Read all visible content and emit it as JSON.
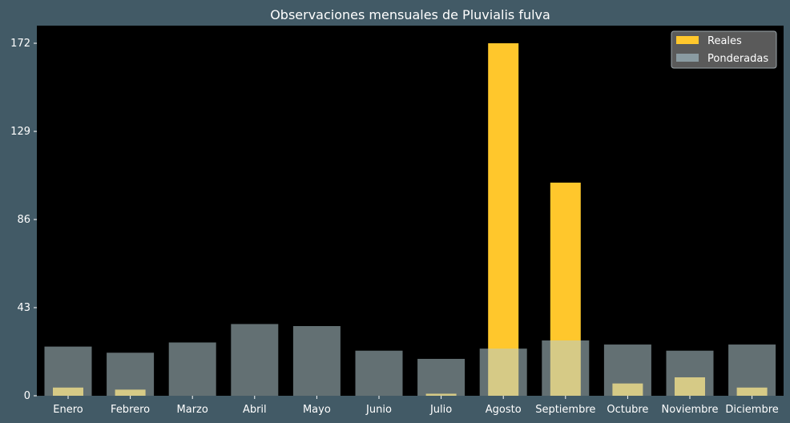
{
  "chart_data": {
    "type": "bar",
    "title": "Observaciones mensuales de Pluvialis fulva",
    "xlabel": "",
    "ylabel": "",
    "categories": [
      "Enero",
      "Febrero",
      "Marzo",
      "Abril",
      "Mayo",
      "Junio",
      "Julio",
      "Agosto",
      "Septiembre",
      "Octubre",
      "Noviembre",
      "Diciembre"
    ],
    "series": [
      {
        "name": "Reales",
        "values": [
          4,
          3,
          0,
          0,
          0,
          0,
          1,
          172,
          104,
          6,
          9,
          4
        ],
        "color": "#ffc72c"
      },
      {
        "name": "Ponderadas",
        "values": [
          24,
          21,
          26,
          35,
          34,
          22,
          18,
          23,
          27,
          25,
          22,
          25
        ],
        "color": "#b5ccd1",
        "opacity": 0.55
      }
    ],
    "yticks": [
      0,
      43,
      86,
      129,
      172
    ],
    "ylim": [
      0,
      180.6
    ],
    "grid": false,
    "legend_position": "top-right",
    "colors": {
      "background": "#425a66",
      "plot_background": "#000000",
      "text": "#ffffff",
      "legend_background": "#5a5a5a"
    }
  }
}
